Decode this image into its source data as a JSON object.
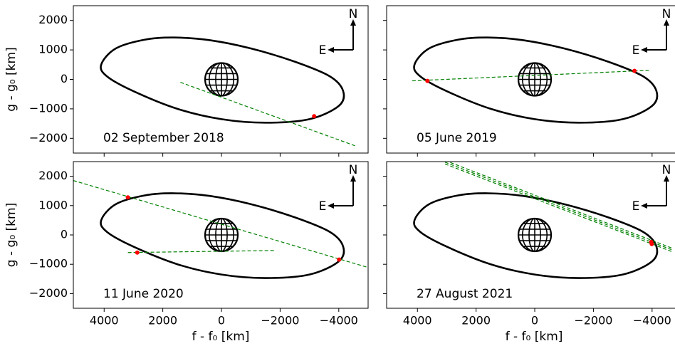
{
  "chart_data": [
    {
      "type": "line",
      "date": "02 September 2018",
      "north": "N",
      "east": "E",
      "ylabel": "g - g₀ [km]",
      "xlim": [
        5050,
        -5000
      ],
      "ylim": [
        -2500,
        2500
      ],
      "xticks": [
        4000,
        2000,
        0,
        {
          "value": -2000,
          "label": "−2000"
        },
        {
          "value": -4000,
          "label": "−4000"
        }
      ],
      "yticks": [
        2000,
        1000,
        0,
        {
          "value": -1000,
          "label": "−1000"
        },
        {
          "value": -2000,
          "label": "−2000"
        }
      ],
      "xtick_labels": false,
      "ytick_labels": true,
      "series": [
        {
          "color": "#000000",
          "closed": true,
          "x": [
            4100,
            3600,
            2600,
            1600,
            400,
            -1000,
            -2500,
            -3700,
            -4150,
            -4000,
            -3000,
            -1500,
            0,
            1500,
            3000,
            3900
          ],
          "y": [
            500,
            1050,
            1350,
            1420,
            1330,
            1050,
            600,
            100,
            -400,
            -900,
            -1350,
            -1470,
            -1350,
            -1000,
            -400,
            100
          ]
        },
        {
          "color": "#008000",
          "closed": false,
          "x": [
            1400,
            -4600
          ],
          "y": [
            -100,
            -2270
          ]
        }
      ],
      "points": {
        "color": "#ff0000",
        "x": [
          -3160
        ],
        "y": [
          -1250
        ]
      }
    },
    {
      "type": "line",
      "date": "05 June 2019",
      "north": "N",
      "east": "E",
      "xlim": [
        5050,
        -5000
      ],
      "ylim": [
        -2500,
        2500
      ],
      "xticks": [
        4000,
        2000,
        0,
        -2000,
        -4000
      ],
      "yticks": [
        2000,
        1000,
        0,
        -1000,
        -2000
      ],
      "xtick_labels": false,
      "ytick_labels": false,
      "series": [
        {
          "color": "#000000",
          "closed": true,
          "x": [
            4100,
            3600,
            2600,
            1600,
            400,
            -1000,
            -2500,
            -3700,
            -4150,
            -4000,
            -3000,
            -1500,
            0,
            1500,
            3000,
            3900
          ],
          "y": [
            500,
            1050,
            1350,
            1420,
            1330,
            1050,
            600,
            100,
            -400,
            -900,
            -1350,
            -1470,
            -1350,
            -1000,
            -400,
            100
          ]
        },
        {
          "color": "#008000",
          "closed": false,
          "x": [
            4180,
            -3970
          ],
          "y": [
            -50,
            310
          ]
        }
      ],
      "points": {
        "color": "#ff0000",
        "x": [
          3660,
          -3400
        ],
        "y": [
          -50,
          290
        ]
      }
    },
    {
      "type": "line",
      "date": "11 June 2020",
      "north": "N",
      "east": "E",
      "ylabel": "g - g₀ [km]",
      "xlabel": "f - f₀ [km]",
      "xlim": [
        5050,
        -5000
      ],
      "ylim": [
        -2500,
        2500
      ],
      "xticks": [
        4000,
        2000,
        0,
        {
          "value": -2000,
          "label": "−2000"
        },
        {
          "value": -4000,
          "label": "−4000"
        }
      ],
      "yticks": [
        2000,
        1000,
        0,
        {
          "value": -1000,
          "label": "−1000"
        },
        {
          "value": -2000,
          "label": "−2000"
        }
      ],
      "xtick_labels": true,
      "ytick_labels": true,
      "series": [
        {
          "color": "#000000",
          "closed": true,
          "x": [
            4100,
            3600,
            2600,
            1600,
            400,
            -1000,
            -2500,
            -3700,
            -4150,
            -4000,
            -3000,
            -1500,
            0,
            1500,
            3000,
            3900
          ],
          "y": [
            500,
            1050,
            1350,
            1420,
            1330,
            1050,
            600,
            100,
            -400,
            -900,
            -1350,
            -1470,
            -1350,
            -1000,
            -400,
            100
          ]
        },
        {
          "color": "#008000",
          "closed": false,
          "x": [
            5050,
            -5000
          ],
          "y": [
            1855,
            -1110
          ]
        },
        {
          "color": "#008000",
          "closed": false,
          "x": [
            3190,
            -1850
          ],
          "y": [
            -600,
            -530
          ]
        }
      ],
      "points": {
        "color": "#ff0000",
        "x": [
          3190,
          -4010,
          2870
        ],
        "y": [
          1280,
          -840,
          -600
        ]
      }
    },
    {
      "type": "line",
      "date": "27 August 2021",
      "north": "N",
      "east": "E",
      "xlabel": "f - f₀ [km]",
      "xlim": [
        5050,
        -5000
      ],
      "ylim": [
        -2500,
        2500
      ],
      "xticks": [
        4000,
        2000,
        0,
        {
          "value": -2000,
          "label": "−2000"
        },
        {
          "value": -4000,
          "label": "−4000"
        }
      ],
      "yticks": [
        2000,
        1000,
        0,
        -1000,
        -2000
      ],
      "xtick_labels": true,
      "ytick_labels": false,
      "series": [
        {
          "color": "#000000",
          "closed": true,
          "x": [
            4100,
            3600,
            2600,
            1600,
            400,
            -1000,
            -2500,
            -3700,
            -4150,
            -4000,
            -3000,
            -1500,
            0,
            1500,
            3000,
            3900
          ],
          "y": [
            500,
            1050,
            1350,
            1420,
            1330,
            1050,
            600,
            100,
            -400,
            -900,
            -1350,
            -1470,
            -1350,
            -1000,
            -400,
            100
          ]
        },
        {
          "color": "#008000",
          "closed": false,
          "x": [
            3060,
            -4730
          ],
          "y": [
            2480,
            -530
          ]
        },
        {
          "color": "#008000",
          "closed": false,
          "x": [
            3060,
            -4730
          ],
          "y": [
            2540,
            -470
          ]
        },
        {
          "color": "#008000",
          "closed": false,
          "x": [
            3060,
            -4730
          ],
          "y": [
            2420,
            -590
          ]
        }
      ],
      "points": {
        "color": "#ff0000",
        "x": [
          -3970,
          -3990
        ],
        "y": [
          -240,
          -310
        ]
      }
    }
  ]
}
